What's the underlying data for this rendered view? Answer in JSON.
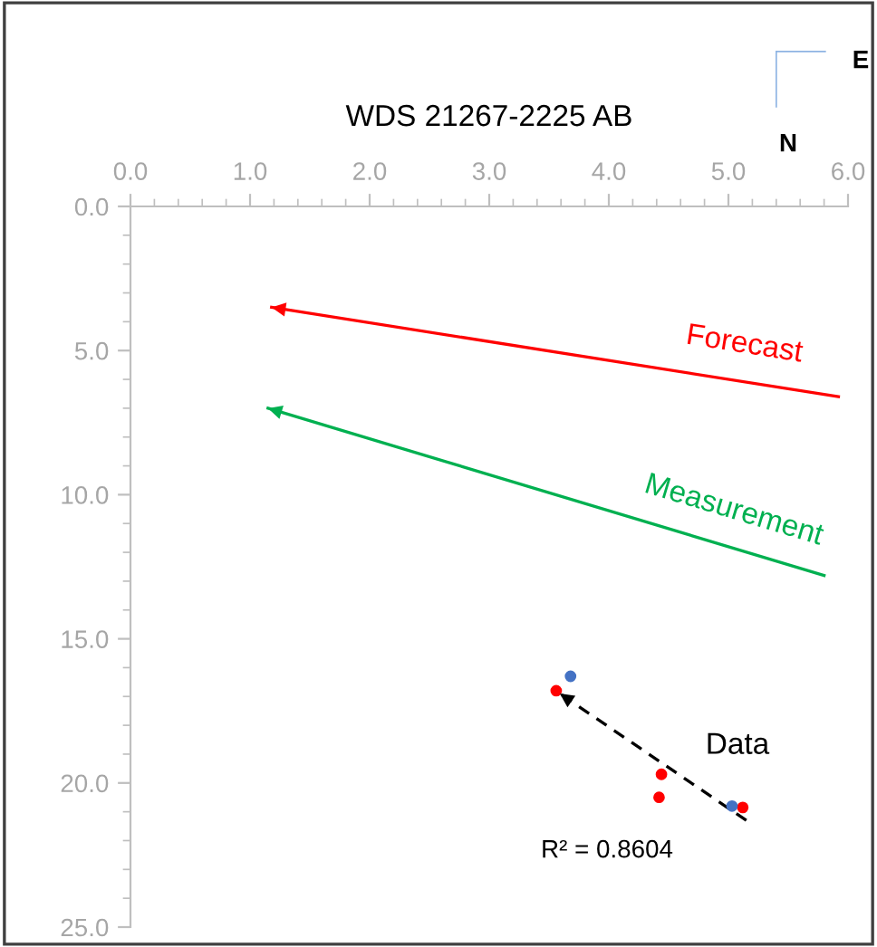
{
  "chart_data": {
    "type": "scatter",
    "title": "WDS 21267-2225 AB",
    "xlim": [
      0,
      6
    ],
    "xticks": [
      {
        "value": 0,
        "label": "0.0"
      },
      {
        "value": 1,
        "label": "1.0"
      },
      {
        "value": 2,
        "label": "2.0"
      },
      {
        "value": 3,
        "label": "3.0"
      },
      {
        "value": 4,
        "label": "4.0"
      },
      {
        "value": 5,
        "label": "5.0"
      },
      {
        "value": 6,
        "label": "6.0"
      }
    ],
    "ylim": [
      25,
      0
    ],
    "yticks": [
      {
        "value": 0,
        "label": "0.0"
      },
      {
        "value": 5,
        "label": "5.0"
      },
      {
        "value": 10,
        "label": "10.0"
      },
      {
        "value": 15,
        "label": "15.0"
      },
      {
        "value": 20,
        "label": "20.0"
      },
      {
        "value": 25,
        "label": "25.0"
      }
    ],
    "grid": false,
    "legend": false,
    "series": [
      {
        "type": "scatter",
        "color": "#ff0000",
        "marker": "circle",
        "x": [
          3.56,
          4.44,
          4.42,
          5.12
        ],
        "values": [
          16.8,
          19.7,
          20.5,
          20.85
        ]
      },
      {
        "type": "scatter",
        "color": "#4472c4",
        "marker": "circle",
        "x": [
          3.68,
          5.03
        ],
        "values": [
          16.3,
          20.8
        ]
      },
      {
        "type": "line",
        "color": "#000000",
        "line_style": "dashed",
        "x": [
          5.15,
          3.59
        ],
        "values": [
          21.3,
          16.9
        ]
      },
      {
        "type": "line",
        "name": "Forecast",
        "color": "#ff0000",
        "line_style": "solid",
        "x": [
          5.92,
          1.18
        ],
        "values": [
          6.6,
          3.5
        ]
      },
      {
        "type": "line",
        "name": "Measurement",
        "color": "#00b050",
        "line_style": "solid",
        "x": [
          5.8,
          1.15
        ],
        "values": [
          12.8,
          7.0
        ]
      }
    ],
    "annotations": [
      "N",
      "E",
      "Data",
      "R² = 0.8604"
    ]
  }
}
